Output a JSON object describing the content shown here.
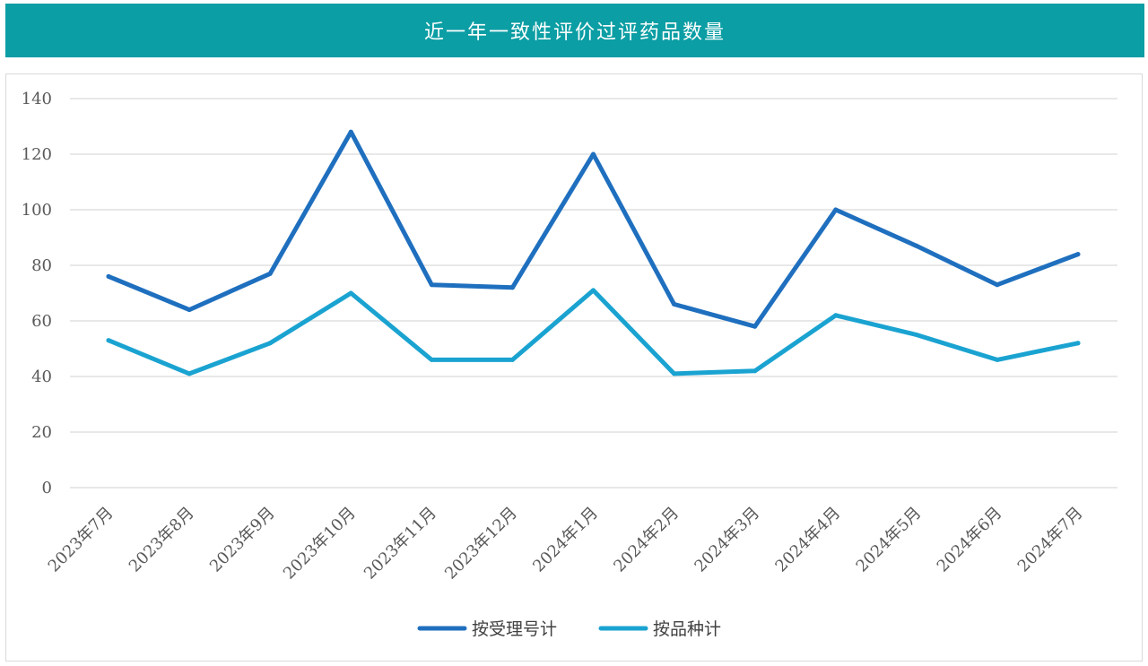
{
  "header": {
    "title": "近一年一致性评价过评药品数量"
  },
  "colors": {
    "header_bg": "#0b9ea4",
    "series_1": "#1f6fbf",
    "series_2": "#1aa3d1",
    "grid": "#d9d9d9"
  },
  "chart_data": {
    "type": "line",
    "title": "近一年一致性评价过评药品数量",
    "xlabel": "",
    "ylabel": "",
    "categories": [
      "2023年7月",
      "2023年8月",
      "2023年9月",
      "2023年10月",
      "2023年11月",
      "2023年12月",
      "2024年1月",
      "2024年2月",
      "2024年3月",
      "2024年4月",
      "2024年5月",
      "2024年6月",
      "2024年7月"
    ],
    "ylim": [
      0,
      140
    ],
    "yticks": [
      0,
      20,
      40,
      60,
      80,
      100,
      120,
      140
    ],
    "grid": true,
    "legend_position": "bottom",
    "series": [
      {
        "name": "按受理号计",
        "color": "#1f6fbf",
        "values": [
          76,
          64,
          77,
          128,
          73,
          72,
          120,
          66,
          58,
          100,
          87,
          73,
          84
        ]
      },
      {
        "name": "按品种计",
        "color": "#1aa3d1",
        "values": [
          53,
          41,
          52,
          70,
          46,
          46,
          71,
          41,
          42,
          62,
          55,
          46,
          52
        ]
      }
    ]
  }
}
